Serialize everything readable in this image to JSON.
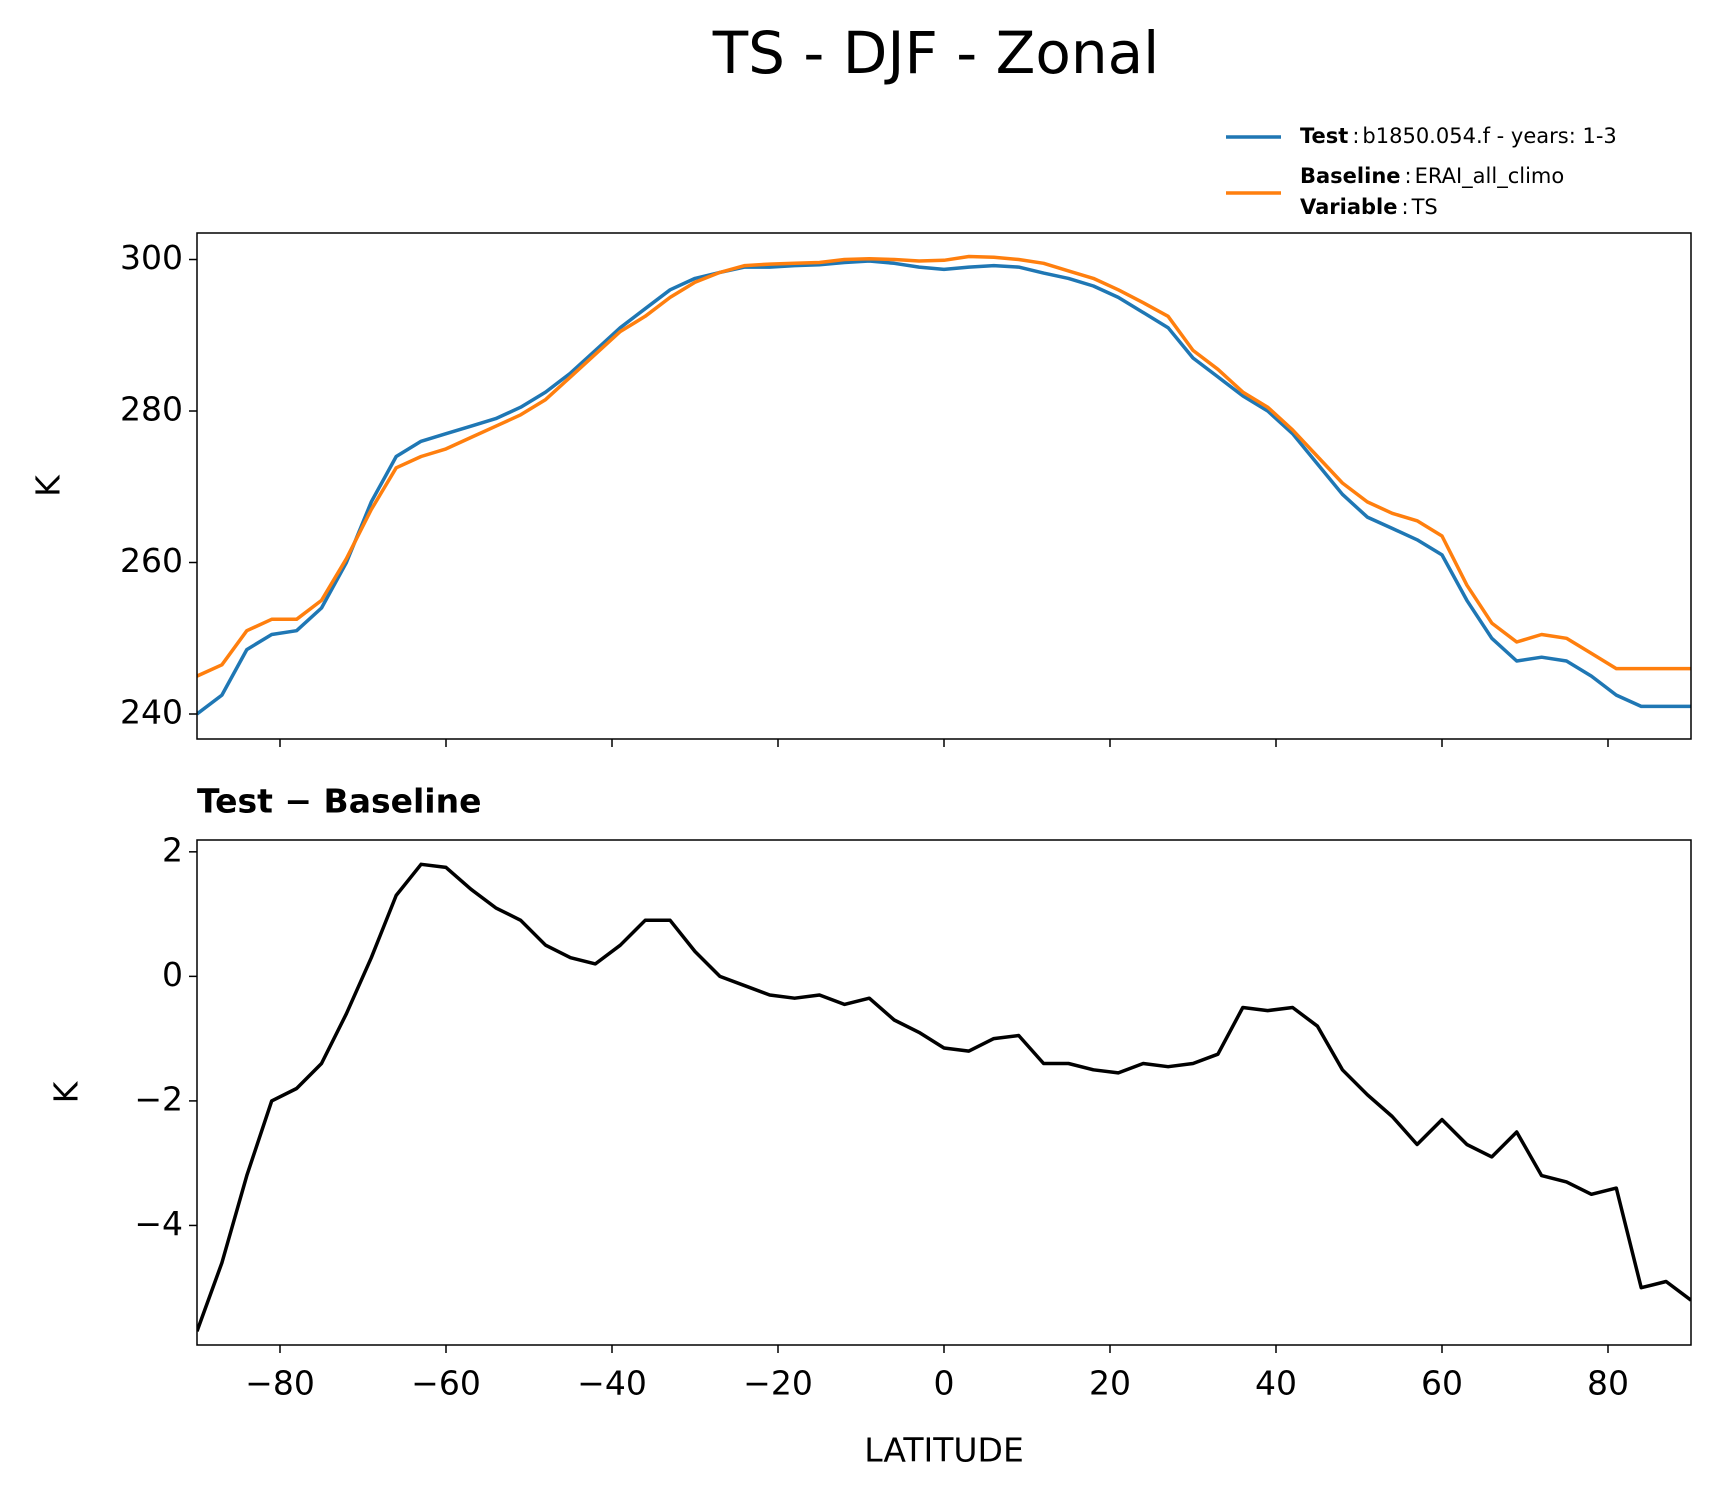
{
  "chart_data": [
    {
      "type": "line",
      "title": "TS - DJF - Zonal",
      "ylabel": "K",
      "x": [
        -90,
        -87,
        -84,
        -81,
        -78,
        -75,
        -72,
        -69,
        -66,
        -63,
        -60,
        -57,
        -54,
        -51,
        -48,
        -45,
        -42,
        -39,
        -36,
        -33,
        -30,
        -27,
        -24,
        -21,
        -18,
        -15,
        -12,
        -9,
        -6,
        -3,
        0,
        3,
        6,
        9,
        12,
        15,
        18,
        21,
        24,
        27,
        30,
        33,
        36,
        39,
        42,
        45,
        48,
        51,
        54,
        57,
        60,
        63,
        66,
        69,
        72,
        75,
        78,
        81,
        84,
        87,
        90
      ],
      "legend_separator": ":",
      "series": [
        {
          "name": "Test",
          "description": "b1850.054.f - years: 1-3",
          "color": "#1f77b4",
          "values": [
            240,
            242.5,
            248.5,
            250.5,
            251,
            254,
            260,
            268,
            274,
            276,
            277,
            278,
            279,
            280.5,
            282.5,
            285,
            288,
            291,
            293.5,
            296,
            297.5,
            298.3,
            299,
            299,
            299.2,
            299.3,
            299.6,
            299.8,
            299.5,
            299,
            298.7,
            299,
            299.2,
            299,
            298.2,
            297.5,
            296.5,
            295,
            293,
            291,
            287,
            284.5,
            282,
            280,
            277,
            273,
            269,
            266,
            264.5,
            263,
            261,
            255,
            250,
            247,
            247.5,
            247,
            245,
            242.5,
            241,
            241,
            241
          ]
        },
        {
          "name": "Baseline",
          "description": "ERAI_all_climo",
          "color": "#ff7f0e",
          "values": [
            245,
            246.5,
            251,
            252.5,
            252.5,
            255,
            260.5,
            267,
            272.5,
            274,
            275,
            276.5,
            278,
            279.5,
            281.5,
            284.5,
            287.5,
            290.5,
            292.5,
            295,
            297,
            298.3,
            299.2,
            299.4,
            299.5,
            299.6,
            300,
            300.1,
            300,
            299.8,
            299.9,
            300.4,
            300.3,
            300,
            299.5,
            298.5,
            297.5,
            296,
            294.3,
            292.5,
            288,
            285.5,
            282.5,
            280.5,
            277.5,
            274,
            270.5,
            268,
            266.5,
            265.5,
            263.5,
            257,
            252,
            249.5,
            250.5,
            250,
            248,
            246,
            246,
            246,
            246
          ]
        }
      ],
      "variable": {
        "name": "Variable",
        "value": "TS"
      },
      "xlim": [
        -90,
        90
      ],
      "xticks": [
        -80,
        -60,
        -40,
        -20,
        0,
        20,
        40,
        60,
        80
      ],
      "ylim": [
        236.7,
        303.5
      ],
      "yticks": [
        240,
        260,
        280,
        300
      ]
    },
    {
      "type": "line",
      "title": "Test − Baseline",
      "xlabel": "LATITUDE",
      "ylabel": "K",
      "x": [
        -90,
        -87,
        -84,
        -81,
        -78,
        -75,
        -72,
        -69,
        -66,
        -63,
        -60,
        -57,
        -54,
        -51,
        -48,
        -45,
        -42,
        -39,
        -36,
        -33,
        -30,
        -27,
        -24,
        -21,
        -18,
        -15,
        -12,
        -9,
        -6,
        -3,
        0,
        3,
        6,
        9,
        12,
        15,
        18,
        21,
        24,
        27,
        30,
        33,
        36,
        39,
        42,
        45,
        48,
        51,
        54,
        57,
        60,
        63,
        66,
        69,
        72,
        75,
        78,
        81,
        84,
        87,
        90
      ],
      "series": [
        {
          "color": "#000000",
          "values": [
            -5.7,
            -4.6,
            -3.2,
            -2.0,
            -1.8,
            -1.4,
            -0.6,
            0.3,
            1.3,
            1.8,
            1.75,
            1.4,
            1.1,
            0.9,
            0.5,
            0.3,
            0.2,
            0.5,
            0.9,
            0.9,
            0.4,
            0.0,
            -0.15,
            -0.3,
            -0.35,
            -0.3,
            -0.45,
            -0.35,
            -0.7,
            -0.9,
            -1.15,
            -1.2,
            -1.0,
            -0.95,
            -1.4,
            -1.4,
            -1.5,
            -1.55,
            -1.4,
            -1.45,
            -1.4,
            -1.25,
            -0.5,
            -0.55,
            -0.5,
            -0.8,
            -1.5,
            -1.9,
            -2.25,
            -2.7,
            -2.3,
            -2.7,
            -2.9,
            -2.5,
            -3.2,
            -3.3,
            -3.5,
            -3.4,
            -5.0,
            -4.9,
            -5.2
          ]
        }
      ],
      "xlim": [
        -90,
        90
      ],
      "xticks": [
        {
          "value": -80,
          "label": "−80"
        },
        {
          "value": -60,
          "label": "−60"
        },
        {
          "value": -40,
          "label": "−40"
        },
        {
          "value": -20,
          "label": "−20"
        },
        0,
        20,
        40,
        60,
        80
      ],
      "ylim": [
        -5.92,
        2.19
      ],
      "yticks": [
        {
          "value": -4,
          "label": "−4"
        },
        {
          "value": -2,
          "label": "−2"
        },
        0,
        2
      ]
    }
  ]
}
